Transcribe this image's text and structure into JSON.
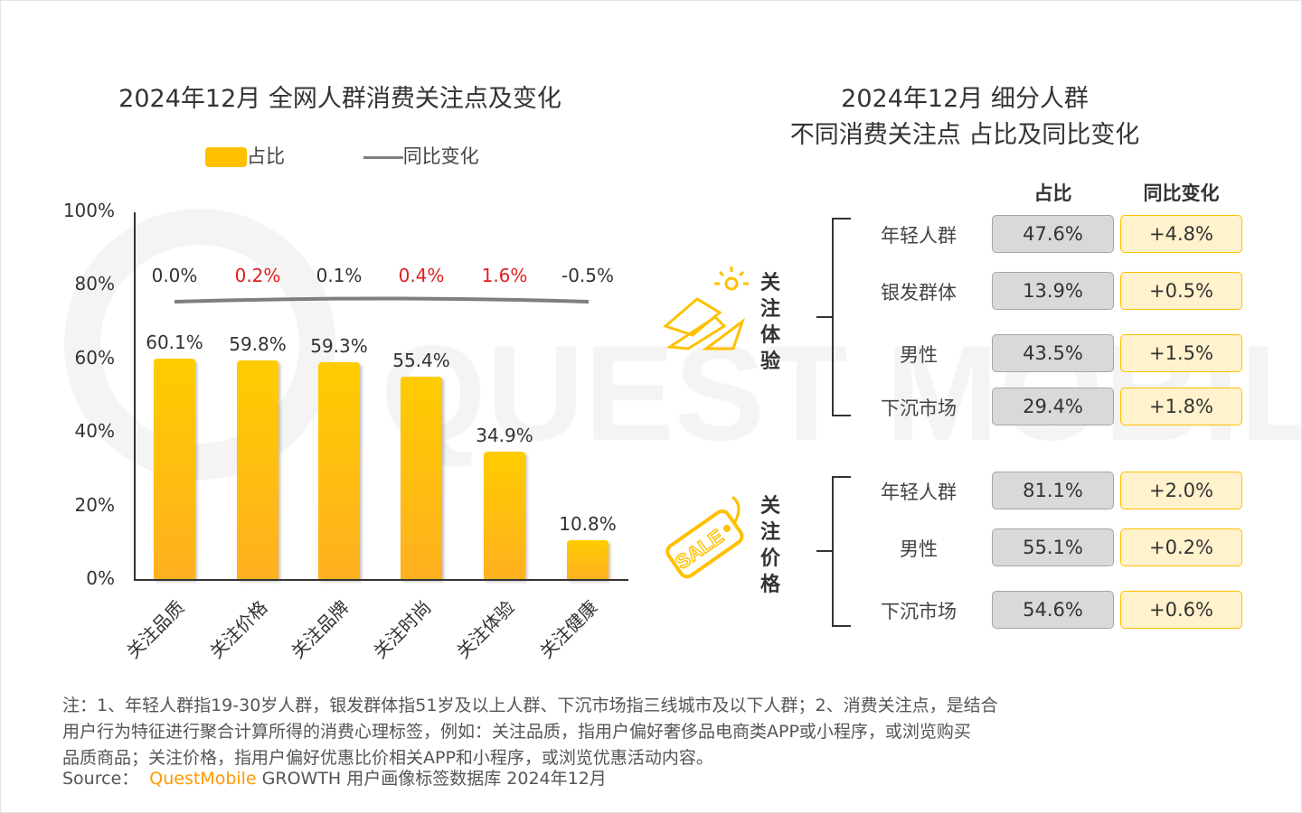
{
  "chart_data": [
    {
      "type": "bar",
      "title": "2024年12月 全网人群消费关注点及变化",
      "legend": [
        "占比",
        "同比变化"
      ],
      "legend_placement": "top",
      "categories": [
        "关注品质",
        "关注价格",
        "关注品牌",
        "关注时尚",
        "关注体验",
        "关注健康"
      ],
      "series": [
        {
          "name": "占比",
          "values": [
            60.1,
            59.8,
            59.3,
            55.4,
            34.9,
            10.8
          ],
          "labels": [
            "60.1%",
            "59.8%",
            "59.3%",
            "55.4%",
            "34.9%",
            "10.8%"
          ]
        },
        {
          "name": "同比变化",
          "type": "line",
          "values": [
            0.0,
            0.2,
            0.1,
            0.4,
            1.6,
            -0.5
          ],
          "labels": [
            "0.0%",
            "0.2%",
            "0.1%",
            "0.4%",
            "1.6%",
            "-0.5%"
          ]
        }
      ],
      "yticks": [
        "0%",
        "20%",
        "40%",
        "60%",
        "80%",
        "100%"
      ],
      "ylim": [
        0,
        100
      ]
    },
    {
      "type": "table",
      "title_line1": "2024年12月 细分人群",
      "title_line2": "不同消费关注点 占比及同比变化",
      "columns": [
        "占比",
        "同比变化"
      ],
      "groups": [
        {
          "name": "关注体验",
          "rows": [
            {
              "label": "年轻人群",
              "share": "47.6%",
              "yoy": "+4.8%"
            },
            {
              "label": "银发群体",
              "share": "13.9%",
              "yoy": "+0.5%"
            },
            {
              "label": "男性",
              "share": "43.5%",
              "yoy": "+1.5%"
            },
            {
              "label": "下沉市场",
              "share": "29.4%",
              "yoy": "+1.8%"
            }
          ]
        },
        {
          "name": "关注价格",
          "rows": [
            {
              "label": "年轻人群",
              "share": "81.1%",
              "yoy": "+2.0%"
            },
            {
              "label": "男性",
              "share": "55.1%",
              "yoy": "+0.2%"
            },
            {
              "label": "下沉市场",
              "share": "54.6%",
              "yoy": "+0.6%"
            }
          ]
        }
      ]
    }
  ],
  "colors": {
    "bar": "#ffc000",
    "positive": "#e02020",
    "neutral": "#333333",
    "line": "#7f7f7f"
  },
  "sale_text": "SALE",
  "watermark": "QUEST MOBILE",
  "notes": [
    "注：1、年轻人群指19-30岁人群，银发群体指51岁及以上人群、下沉市场指三线城市及以下人群；2、消费关注点，是结合",
    "用户行为特征进行聚合计算所得的消费心理标签，例如：关注品质，指用户偏好奢侈品电商类APP或小程序，或浏览购买",
    "品质商品；关注价格，指用户偏好优惠比价相关APP和小程序，或浏览优惠活动内容。"
  ],
  "source": {
    "prefix": "Source：",
    "brand": "QuestMobile",
    "rest": "GROWTH 用户画像标签数据库 2024年12月"
  }
}
